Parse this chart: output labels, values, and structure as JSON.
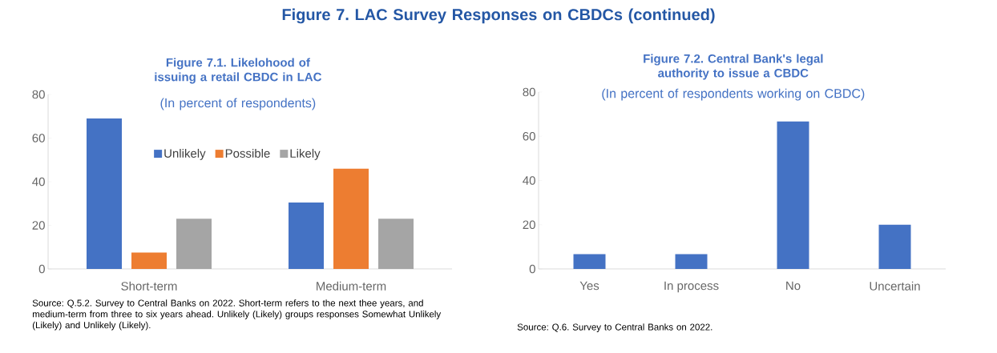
{
  "chart_data": [
    {
      "type": "bar",
      "title": "Figure 7.1. Likelohood of issuing a retail CBDC in LAC",
      "subtitle": "(In percent of respondents)",
      "categories": [
        "Short-term",
        "Medium-term"
      ],
      "series": [
        {
          "name": "Unlikely",
          "color": "#4472c4",
          "values": [
            69,
            30.5
          ]
        },
        {
          "name": "Possible",
          "color": "#ed7d31",
          "values": [
            7.5,
            46
          ]
        },
        {
          "name": "Likely",
          "color": "#a5a5a5",
          "values": [
            23,
            23
          ]
        }
      ],
      "ylim": [
        0,
        80
      ],
      "yticks": [
        0,
        20,
        40,
        60,
        80
      ],
      "legend": "top",
      "annotations": [
        "Figure 7. LAC Survey Responses on CBDCs (continued)",
        "Source: Q.5.2. Survey to Central Banks on 2022. Short-term refers to the next thee years, and medium-term from three to six years ahead. Unlikely (Likely) groups responses Somewhat Unlikely (Likely)  and Unlikely (Likely)."
      ]
    },
    {
      "type": "bar",
      "title": "Figure 7.2. Central Bank's legal authority to issue a CBDC",
      "subtitle": "(In percent of respondents working on CBDC)",
      "categories": [
        "Yes",
        "In process",
        "No",
        "Uncertain"
      ],
      "values": [
        6.7,
        6.7,
        66.7,
        20
      ],
      "color": "#4472c4",
      "ylim": [
        0,
        80
      ],
      "yticks": [
        0,
        20,
        40,
        60,
        80
      ],
      "annotations": [
        "Source: Q.6. Survey to Central Banks on 2022."
      ]
    }
  ]
}
